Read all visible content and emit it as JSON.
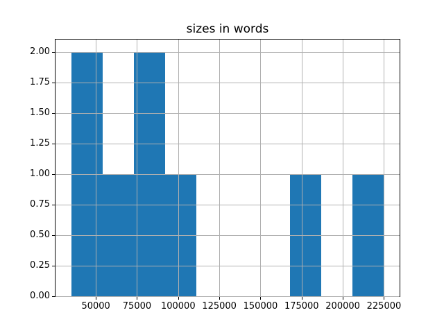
{
  "chart_data": {
    "type": "histogram",
    "title": "sizes in words",
    "xlabel": "",
    "ylabel": "",
    "bin_edges": [
      35000,
      54000,
      73000,
      92000,
      111000,
      130000,
      149000,
      168000,
      187000,
      206000,
      225000
    ],
    "counts": [
      2,
      1,
      2,
      1,
      0,
      0,
      0,
      1,
      0,
      1
    ],
    "xlim": [
      25500,
      234500
    ],
    "ylim": [
      0,
      2.1
    ],
    "xticks": [
      {
        "value": 50000,
        "label": "50000"
      },
      {
        "value": 75000,
        "label": "75000"
      },
      {
        "value": 100000,
        "label": "100000"
      },
      {
        "value": 125000,
        "label": "125000"
      },
      {
        "value": 150000,
        "label": "150000"
      },
      {
        "value": 175000,
        "label": "175000"
      },
      {
        "value": 200000,
        "label": "200000"
      },
      {
        "value": 225000,
        "label": "225000"
      }
    ],
    "yticks": [
      {
        "value": 0,
        "label": "0.00"
      },
      {
        "value": 0.25,
        "label": "0.25"
      },
      {
        "value": 0.5,
        "label": "0.50"
      },
      {
        "value": 0.75,
        "label": "0.75"
      },
      {
        "value": 1,
        "label": "1.00"
      },
      {
        "value": 1.25,
        "label": "1.25"
      },
      {
        "value": 1.5,
        "label": "1.50"
      },
      {
        "value": 1.75,
        "label": "1.75"
      },
      {
        "value": 2,
        "label": "2.00"
      }
    ],
    "grid": true,
    "legend": false,
    "colors": {
      "bar": "#1f77b4",
      "grid": "#b0b0b0",
      "spine": "#000000",
      "text": "#000000",
      "background": "#ffffff"
    }
  }
}
